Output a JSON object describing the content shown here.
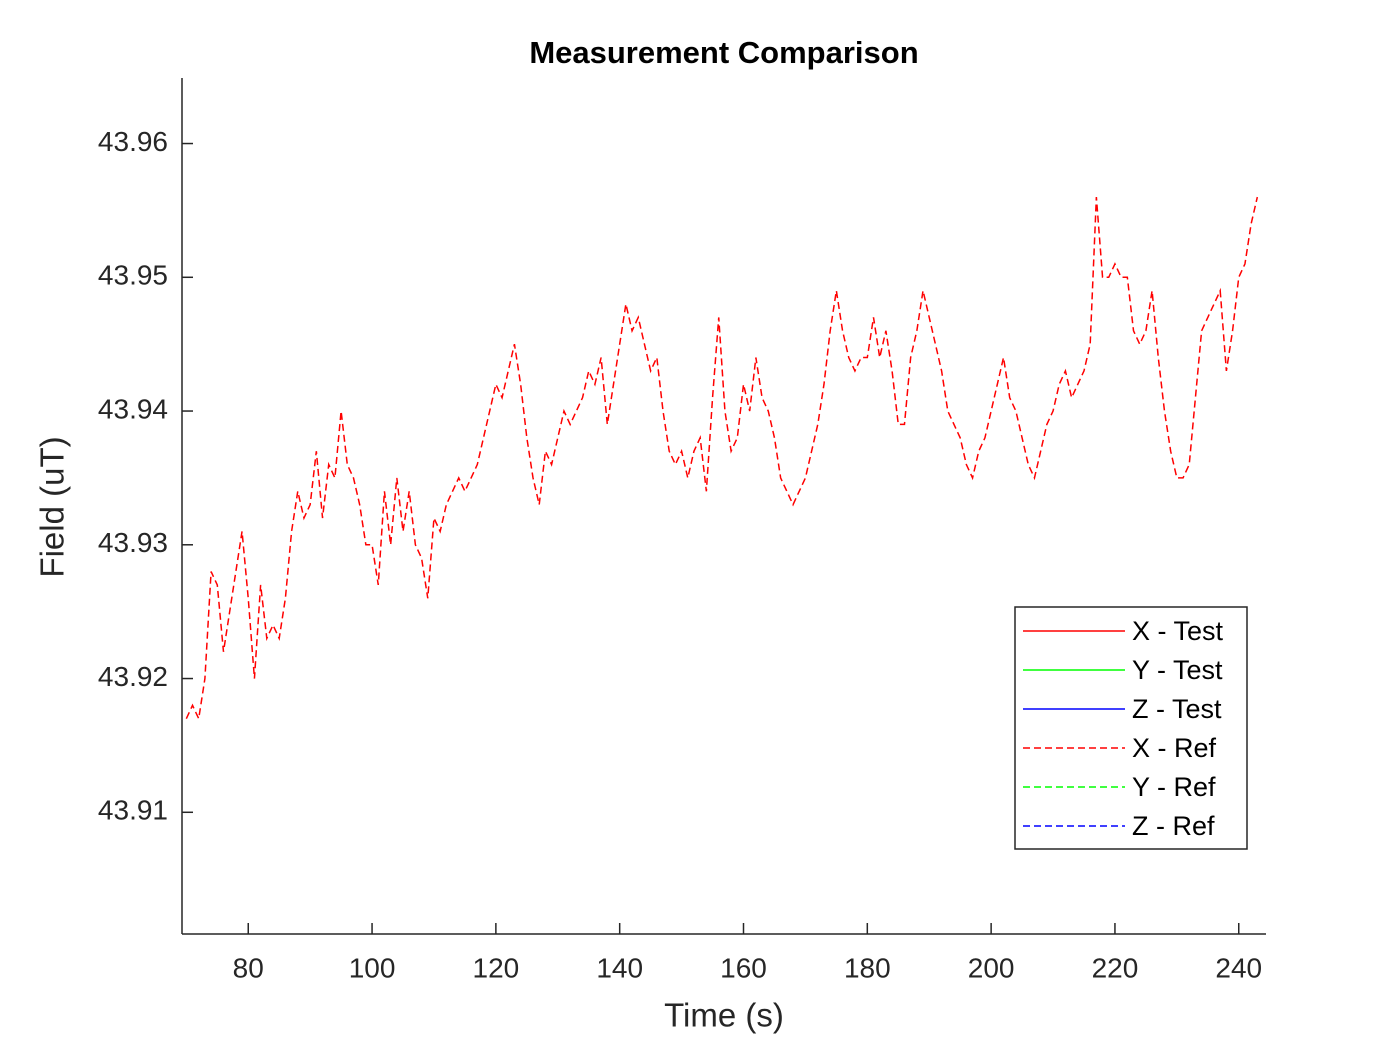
{
  "chart_data": {
    "type": "line",
    "title": "Measurement Comparison",
    "x_label": "Time (s)",
    "y_label": "Field (uT)",
    "xlim": [
      69.3,
      244.4
    ],
    "ylim": [
      43.9009,
      43.9649
    ],
    "xticks": [
      80,
      100,
      120,
      140,
      160,
      180,
      200,
      220,
      240
    ],
    "yticks": [
      43.91,
      43.92,
      43.93,
      43.94,
      43.95,
      43.96
    ],
    "grid": false,
    "legend": "lower-right",
    "x": [
      70,
      71,
      72,
      73,
      74,
      75,
      76,
      77,
      78,
      79,
      80,
      81,
      82,
      83,
      84,
      85,
      86,
      87,
      88,
      89,
      90,
      91,
      92,
      93,
      94,
      95,
      96,
      97,
      98,
      99,
      100,
      101,
      102,
      103,
      104,
      105,
      106,
      107,
      108,
      109,
      110,
      111,
      112,
      113,
      114,
      115,
      116,
      117,
      118,
      119,
      120,
      121,
      122,
      123,
      124,
      125,
      126,
      127,
      128,
      129,
      130,
      131,
      132,
      133,
      134,
      135,
      136,
      137,
      138,
      139,
      140,
      141,
      142,
      143,
      144,
      145,
      146,
      147,
      148,
      149,
      150,
      151,
      152,
      153,
      154,
      155,
      156,
      157,
      158,
      159,
      160,
      161,
      162,
      163,
      164,
      165,
      166,
      167,
      168,
      169,
      170,
      171,
      172,
      173,
      174,
      175,
      176,
      177,
      178,
      179,
      180,
      181,
      182,
      183,
      184,
      185,
      186,
      187,
      188,
      189,
      190,
      191,
      192,
      193,
      194,
      195,
      196,
      197,
      198,
      199,
      200,
      201,
      202,
      203,
      204,
      205,
      206,
      207,
      208,
      209,
      210,
      211,
      212,
      213,
      214,
      215,
      216,
      217,
      218,
      219,
      220,
      221,
      222,
      223,
      224,
      225,
      226,
      227,
      228,
      229,
      230,
      231,
      232,
      233,
      234,
      235,
      236,
      237,
      238,
      239,
      240,
      241,
      242,
      243
    ],
    "series": [
      {
        "name": "X - Test",
        "color": "#ff0000",
        "line_style": "solid"
      },
      {
        "name": "Y - Test",
        "color": "#00ff00",
        "line_style": "solid"
      },
      {
        "name": "Z - Test",
        "color": "#0000ff",
        "line_style": "solid"
      },
      {
        "name": "X - Ref",
        "color": "#ff0000",
        "line_style": "dashed",
        "values": [
          43.917,
          43.918,
          43.917,
          43.92,
          43.928,
          43.927,
          43.922,
          43.925,
          43.928,
          43.931,
          43.926,
          43.92,
          43.927,
          43.923,
          43.924,
          43.923,
          43.926,
          43.931,
          43.934,
          43.932,
          43.933,
          43.937,
          43.932,
          43.936,
          43.935,
          43.94,
          43.936,
          43.935,
          43.933,
          43.93,
          43.93,
          43.927,
          43.934,
          43.93,
          43.935,
          43.931,
          43.934,
          43.93,
          43.929,
          43.926,
          43.932,
          43.931,
          43.933,
          43.934,
          43.935,
          43.934,
          43.935,
          43.936,
          43.938,
          43.94,
          43.942,
          43.941,
          43.943,
          43.945,
          43.942,
          43.938,
          43.935,
          43.933,
          43.937,
          43.936,
          43.938,
          43.94,
          43.939,
          43.94,
          43.941,
          43.943,
          43.942,
          43.944,
          43.939,
          43.942,
          43.945,
          43.948,
          43.946,
          43.947,
          43.945,
          43.943,
          43.944,
          43.94,
          43.937,
          43.936,
          43.937,
          43.935,
          43.937,
          43.938,
          43.934,
          43.941,
          43.947,
          43.94,
          43.937,
          43.938,
          43.942,
          43.94,
          43.944,
          43.941,
          43.94,
          43.938,
          43.935,
          43.934,
          43.933,
          43.934,
          43.935,
          43.937,
          43.939,
          43.942,
          43.946,
          43.949,
          43.946,
          43.944,
          43.943,
          43.944,
          43.944,
          43.947,
          43.944,
          43.946,
          43.943,
          43.939,
          43.939,
          43.944,
          43.946,
          43.949,
          43.947,
          43.945,
          43.943,
          43.94,
          43.939,
          43.938,
          43.936,
          43.935,
          43.937,
          43.938,
          43.94,
          43.942,
          43.944,
          43.941,
          43.94,
          43.938,
          43.936,
          43.935,
          43.937,
          43.939,
          43.94,
          43.942,
          43.943,
          43.941,
          43.942,
          43.943,
          43.945,
          43.956,
          43.95,
          43.95,
          43.951,
          43.95,
          43.95,
          43.946,
          43.945,
          43.946,
          43.949,
          43.944,
          43.94,
          43.937,
          43.935,
          43.935,
          43.936,
          43.941,
          43.946,
          43.947,
          43.948,
          43.949,
          43.943,
          43.946,
          43.95,
          43.951,
          43.954,
          43.956
        ]
      },
      {
        "name": "Y - Ref",
        "color": "#00ff00",
        "line_style": "dashed"
      },
      {
        "name": "Z - Ref",
        "color": "#0000ff",
        "line_style": "dashed"
      }
    ]
  }
}
